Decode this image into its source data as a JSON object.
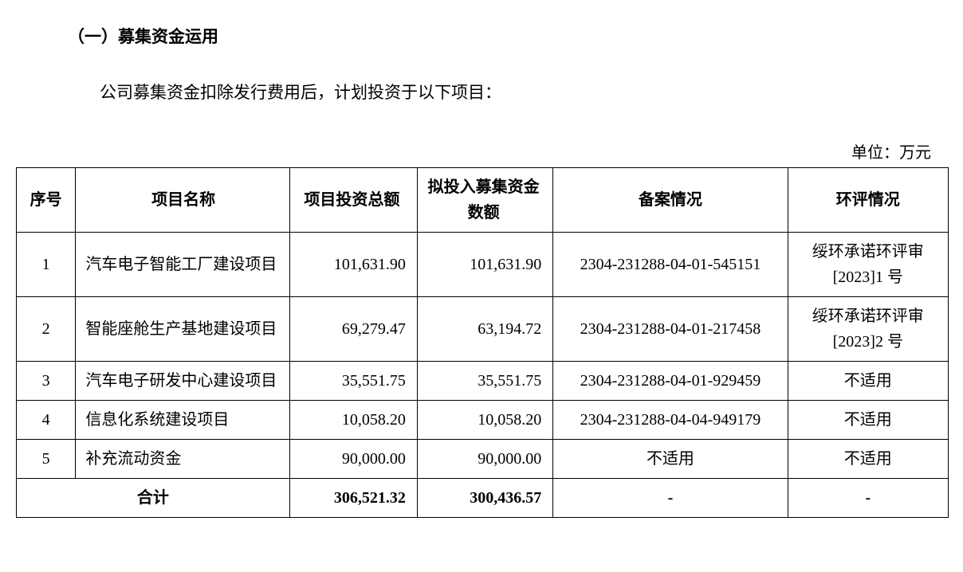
{
  "section_title": "（一）募集资金运用",
  "intro_text": "公司募集资金扣除发行费用后，计划投资于以下项目：",
  "unit_label": "单位：万元",
  "table": {
    "headers": {
      "seq": "序号",
      "name": "项目名称",
      "amount1": "项目投资总额",
      "amount2": "拟投入募集资金数额",
      "filing": "备案情况",
      "eia": "环评情况"
    },
    "rows": [
      {
        "seq": "1",
        "name": "汽车电子智能工厂建设项目",
        "amount1": "101,631.90",
        "amount2": "101,631.90",
        "filing": "2304-231288-04-01-545151",
        "eia": "绥环承诺环评审[2023]1 号"
      },
      {
        "seq": "2",
        "name": "智能座舱生产基地建设项目",
        "amount1": "69,279.47",
        "amount2": "63,194.72",
        "filing": "2304-231288-04-01-217458",
        "eia": "绥环承诺环评审[2023]2 号"
      },
      {
        "seq": "3",
        "name": "汽车电子研发中心建设项目",
        "amount1": "35,551.75",
        "amount2": "35,551.75",
        "filing": "2304-231288-04-01-929459",
        "eia": "不适用"
      },
      {
        "seq": "4",
        "name": "信息化系统建设项目",
        "amount1": "10,058.20",
        "amount2": "10,058.20",
        "filing": "2304-231288-04-04-949179",
        "eia": "不适用"
      },
      {
        "seq": "5",
        "name": "补充流动资金",
        "amount1": "90,000.00",
        "amount2": "90,000.00",
        "filing": "不适用",
        "eia": "不适用"
      }
    ],
    "total": {
      "label": "合计",
      "amount1": "306,521.32",
      "amount2": "300,436.57",
      "filing": "-",
      "eia": "-"
    }
  },
  "style": {
    "background_color": "#ffffff",
    "text_color": "#000000",
    "border_color": "#000000",
    "font_family": "SimSun",
    "title_fontsize": 21,
    "body_fontsize": 21,
    "table_fontsize": 20
  }
}
